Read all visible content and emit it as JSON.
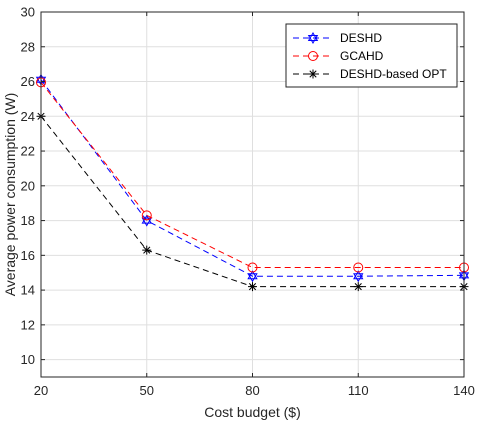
{
  "chart_data": {
    "type": "line",
    "x": [
      20,
      50,
      80,
      110,
      140
    ],
    "xlabel": "Cost budget ($)",
    "ylabel": "Average power consumption (W)",
    "xlim": [
      20,
      140
    ],
    "ylim": [
      9,
      30
    ],
    "xticks": [
      "20",
      "50",
      "80",
      "110",
      "140"
    ],
    "yticks": [
      "10",
      "12",
      "14",
      "16",
      "18",
      "20",
      "22",
      "24",
      "26",
      "28",
      "30"
    ],
    "grid": true,
    "legend_position": "top-right",
    "series": [
      {
        "name": "DESHD",
        "values": [
          26.1,
          18.0,
          14.8,
          14.8,
          14.85
        ],
        "color": "#0000ff",
        "marker": "hexagram",
        "linestyle": "dashed"
      },
      {
        "name": "GCAHD",
        "values": [
          25.95,
          18.3,
          15.3,
          15.3,
          15.3
        ],
        "color": "#ff0000",
        "marker": "circle",
        "linestyle": "dashed"
      },
      {
        "name": "DESHD-based OPT",
        "values": [
          24.0,
          16.3,
          14.2,
          14.2,
          14.2
        ],
        "color": "#000000",
        "marker": "asterisk",
        "linestyle": "dashed"
      }
    ]
  }
}
